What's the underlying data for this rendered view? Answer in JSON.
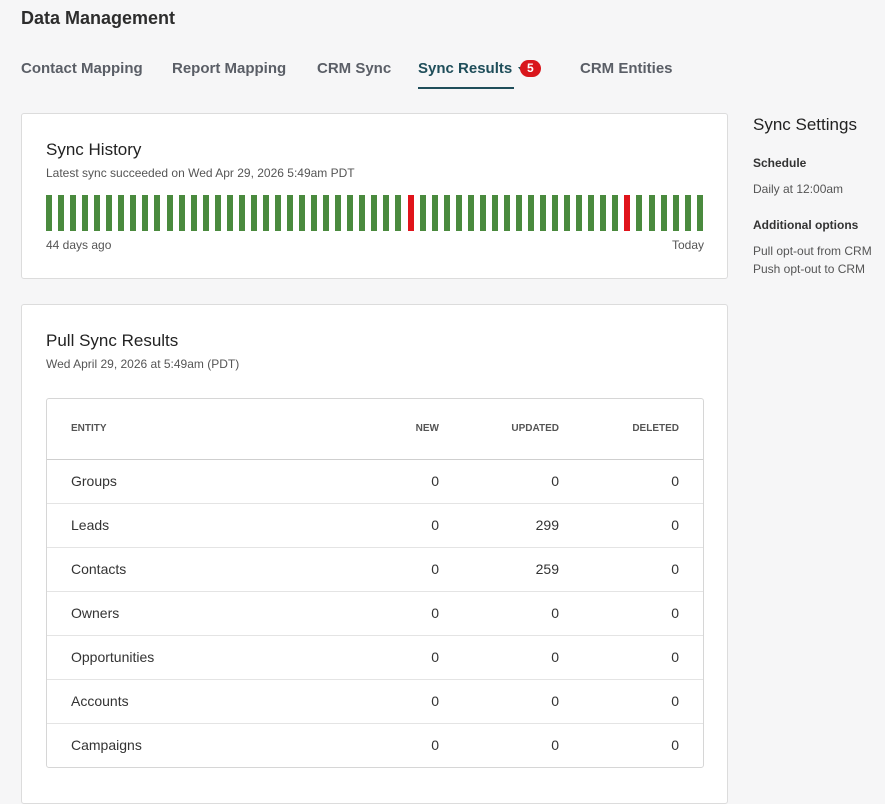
{
  "header": {
    "title": "Data Management"
  },
  "tabs": [
    {
      "label": "Contact Mapping"
    },
    {
      "label": "Report Mapping"
    },
    {
      "label": "CRM Sync"
    },
    {
      "label": "Sync Results",
      "badge": 5
    },
    {
      "label": "CRM Entities"
    }
  ],
  "sync_history": {
    "title": "Sync History",
    "subtitle": "Latest sync succeeded on Wed Apr 29, 2026 5:49am PDT",
    "start_label": "44 days ago",
    "end_label": "Today"
  },
  "pull_sync": {
    "title": "Pull Sync Results",
    "subtitle": "Wed April 29, 2026 at 5:49am (PDT)",
    "table": {
      "columns": [
        "ENTITY",
        "NEW",
        "UPDATED",
        "DELETED"
      ],
      "rows": [
        [
          "Groups",
          0,
          0,
          0
        ],
        [
          "Leads",
          0,
          299,
          0
        ],
        [
          "Contacts",
          0,
          259,
          0
        ],
        [
          "Owners",
          0,
          0,
          0
        ],
        [
          "Opportunities",
          0,
          0,
          0
        ],
        [
          "Accounts",
          0,
          0,
          0
        ],
        [
          "Campaigns",
          0,
          0,
          0
        ]
      ]
    }
  },
  "sidebar": {
    "title": "Sync Settings",
    "sections": [
      {
        "heading": "Schedule",
        "items": [
          "Daily at 12:00am"
        ]
      },
      {
        "heading": "Additional options",
        "items": [
          "Pull opt-out from CRM",
          "Push opt-out to CRM"
        ]
      }
    ]
  }
}
